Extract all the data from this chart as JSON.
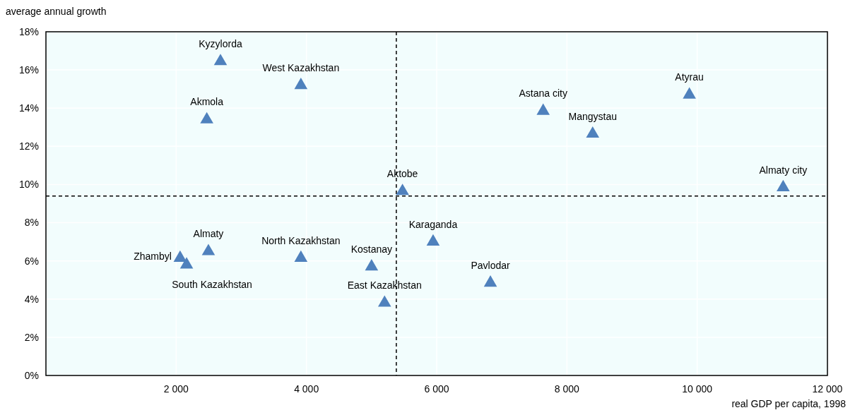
{
  "chart_data": {
    "type": "scatter",
    "xlabel": "real GDP per capita, 1998",
    "ylabel": "average annual growth",
    "xlim": [
      0,
      12000
    ],
    "ylim": [
      0,
      18
    ],
    "xticks": [
      {
        "value": 2000,
        "label": "2 000"
      },
      {
        "value": 4000,
        "label": "4 000"
      },
      {
        "value": 6000,
        "label": "6 000"
      },
      {
        "value": 8000,
        "label": "8 000"
      },
      {
        "value": 10000,
        "label": "10 000"
      },
      {
        "value": 12000,
        "label": "12 000"
      }
    ],
    "yticks": [
      {
        "value": 0,
        "label": "0%"
      },
      {
        "value": 2,
        "label": "2%"
      },
      {
        "value": 4,
        "label": "4%"
      },
      {
        "value": 6,
        "label": "6%"
      },
      {
        "value": 8,
        "label": "8%"
      },
      {
        "value": 10,
        "label": "10%"
      },
      {
        "value": 12,
        "label": "12%"
      },
      {
        "value": 14,
        "label": "14%"
      },
      {
        "value": 16,
        "label": "16%"
      },
      {
        "value": 18,
        "label": "18%"
      }
    ],
    "grid": true,
    "marker": "triangle",
    "series": [
      {
        "color": "#4f81bd",
        "x": [
          2680,
          3915,
          2470,
          5475,
          7635,
          8395,
          9880,
          11320,
          2060,
          2160,
          2495,
          3915,
          5000,
          5200,
          5945,
          6825
        ],
        "values": [
          16.45,
          15.2,
          13.4,
          9.65,
          13.85,
          12.65,
          14.7,
          9.85,
          6.15,
          5.8,
          6.5,
          6.15,
          5.7,
          3.8,
          7.0,
          4.85
        ]
      }
    ],
    "ref_lines": [
      {
        "axis": "x",
        "value": 5380,
        "line_style": "dashed",
        "color": "#000000"
      },
      {
        "axis": "y",
        "value": 9.4,
        "line_style": "dashed",
        "color": "#000000"
      }
    ],
    "annotations": [
      {
        "text": "Kyzylorda",
        "x": 2680,
        "y": 16.45
      },
      {
        "text": "West Kazakhstan",
        "x": 3915,
        "y": 15.2
      },
      {
        "text": "Akmola",
        "x": 2470,
        "y": 13.4
      },
      {
        "text": "Aktobe",
        "x": 5475,
        "y": 9.65
      },
      {
        "text": "Astana city",
        "x": 7635,
        "y": 13.85
      },
      {
        "text": "Mangystau",
        "x": 8395,
        "y": 12.65
      },
      {
        "text": "Atyrau",
        "x": 9880,
        "y": 14.7
      },
      {
        "text": "Almaty city",
        "x": 11320,
        "y": 9.85
      },
      {
        "text": "Zhambyl",
        "x": 2060,
        "y": 6.15
      },
      {
        "text": "South Kazakhstan",
        "x": 2160,
        "y": 5.8
      },
      {
        "text": "Almaty",
        "x": 2495,
        "y": 6.5
      },
      {
        "text": "North Kazakhstan",
        "x": 3915,
        "y": 6.15
      },
      {
        "text": "Kostanay",
        "x": 5000,
        "y": 5.7
      },
      {
        "text": "East Kazakhstan",
        "x": 5200,
        "y": 3.8
      },
      {
        "text": "Karaganda",
        "x": 5945,
        "y": 7.0
      },
      {
        "text": "Pavlodar",
        "x": 6825,
        "y": 4.85
      }
    ]
  }
}
